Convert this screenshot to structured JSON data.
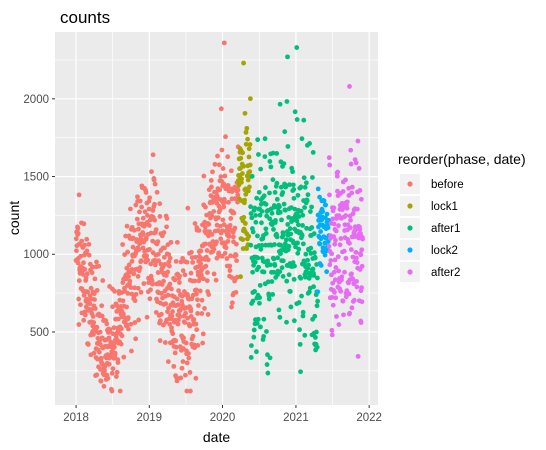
{
  "chart_data": {
    "type": "scatter",
    "title": "counts",
    "xlabel": "date",
    "ylabel": "count",
    "x_ticks": [
      "2018",
      "2019",
      "2020",
      "2021",
      "2022"
    ],
    "y_ticks": [
      "500",
      "1000",
      "1500",
      "2000"
    ],
    "xlim": [
      "2017-09-18",
      "2022-02-14"
    ],
    "ylim": [
      30,
      2430
    ],
    "grid": true,
    "legend": {
      "title": "reorder(phase, date)",
      "position": "right"
    },
    "series": [
      {
        "name": "before",
        "color": "#F8766D",
        "range": [
          "2018-01-01",
          "2020-03-20"
        ]
      },
      {
        "name": "lock1",
        "color": "#A3A500",
        "range": [
          "2020-03-20",
          "2020-05-20"
        ]
      },
      {
        "name": "after1",
        "color": "#00BF7D",
        "range": [
          "2020-05-20",
          "2021-04-20"
        ]
      },
      {
        "name": "lock2",
        "color": "#00B0F6",
        "range": [
          "2021-04-20",
          "2021-06-15"
        ]
      },
      {
        "name": "after2",
        "color": "#E76BF3",
        "range": [
          "2021-06-15",
          "2021-11-30"
        ]
      }
    ],
    "highlights": [
      {
        "date": "2020-01-10",
        "count": 2360,
        "series": "before"
      },
      {
        "date": "2019-01-20",
        "count": 1640,
        "series": "before"
      },
      {
        "date": "2020-04-15",
        "count": 2230,
        "series": "lock1"
      },
      {
        "date": "2021-01-05",
        "count": 2330,
        "series": "after1"
      },
      {
        "date": "2020-11-20",
        "count": 2270,
        "series": "after1"
      },
      {
        "date": "2021-09-25",
        "count": 2080,
        "series": "after2"
      },
      {
        "date": "2018-05-20",
        "count": 150,
        "series": "before"
      },
      {
        "date": "2021-11-20",
        "count": 570,
        "series": "after2"
      }
    ]
  }
}
